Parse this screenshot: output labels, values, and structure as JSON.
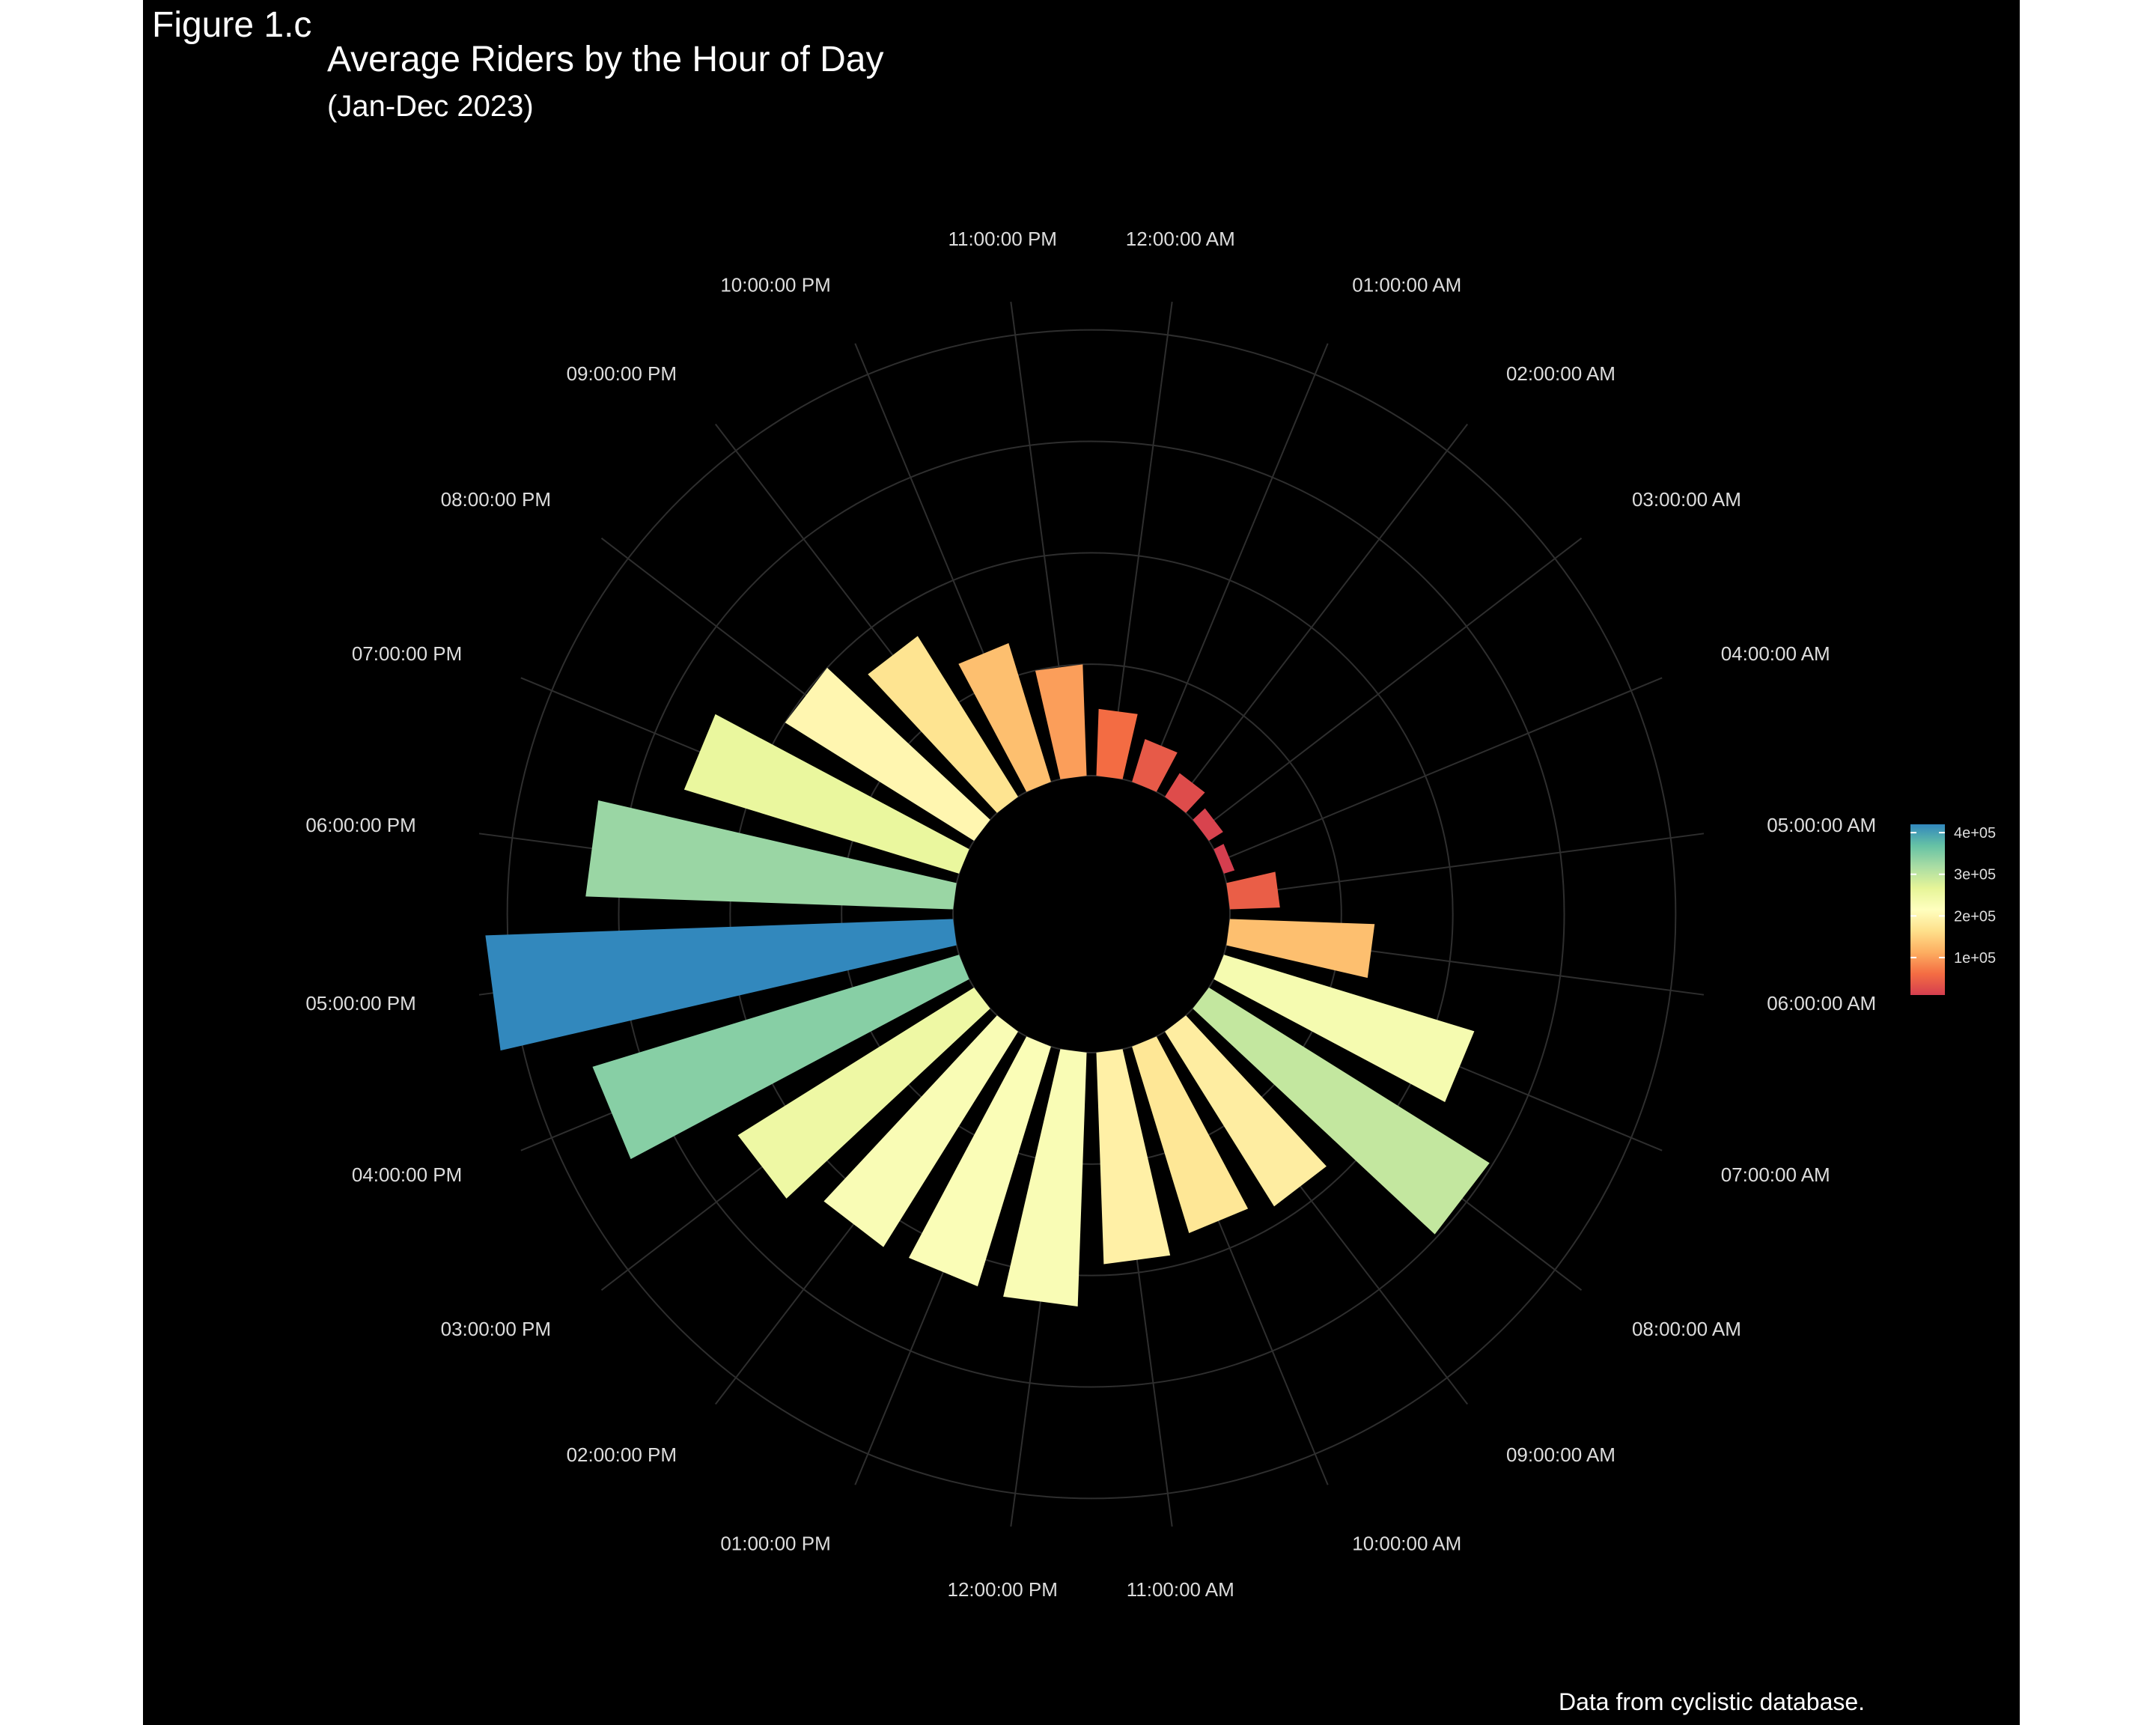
{
  "figure_label": "Figure 1.c",
  "chart_data": {
    "type": "bar",
    "coord": "polar",
    "title": "Average Riders by the Hour of Day",
    "subtitle": "(Jan-Dec 2023)",
    "caption": "Data from cyclistic database.",
    "categories": [
      "12:00:00 AM",
      "01:00:00 AM",
      "02:00:00 AM",
      "03:00:00 AM",
      "04:00:00 AM",
      "05:00:00 AM",
      "06:00:00 AM",
      "07:00:00 AM",
      "08:00:00 AM",
      "09:00:00 AM",
      "10:00:00 AM",
      "11:00:00 AM",
      "12:00:00 PM",
      "01:00:00 PM",
      "02:00:00 PM",
      "03:00:00 PM",
      "04:00:00 PM",
      "05:00:00 PM",
      "06:00:00 PM",
      "07:00:00 PM",
      "08:00:00 PM",
      "09:00:00 PM",
      "10:00:00 PM",
      "11:00:00 PM"
    ],
    "values": [
      60000,
      40000,
      25000,
      15000,
      10000,
      45000,
      130000,
      235000,
      297000,
      185000,
      175000,
      190000,
      228000,
      225000,
      228000,
      250000,
      344000,
      420000,
      330000,
      258000,
      200000,
      170000,
      130000,
      100000
    ],
    "ylim": [
      0,
      430000
    ],
    "grid": true,
    "legend": {
      "type": "colorbar",
      "position": "right",
      "labels": [
        "1e+05",
        "2e+05",
        "3e+05",
        "4e+05"
      ],
      "ticks": [
        100000,
        200000,
        300000,
        400000
      ],
      "range": [
        10000,
        420000
      ]
    },
    "palette": [
      "#D53E4F",
      "#F46D43",
      "#FDAE61",
      "#FEE08B",
      "#FFFFBF",
      "#E6F598",
      "#ABDDA4",
      "#66C2A5",
      "#3288BD"
    ],
    "background": "#000000",
    "text_color": "#ffffff",
    "grid_color": "#2e2e2e"
  }
}
